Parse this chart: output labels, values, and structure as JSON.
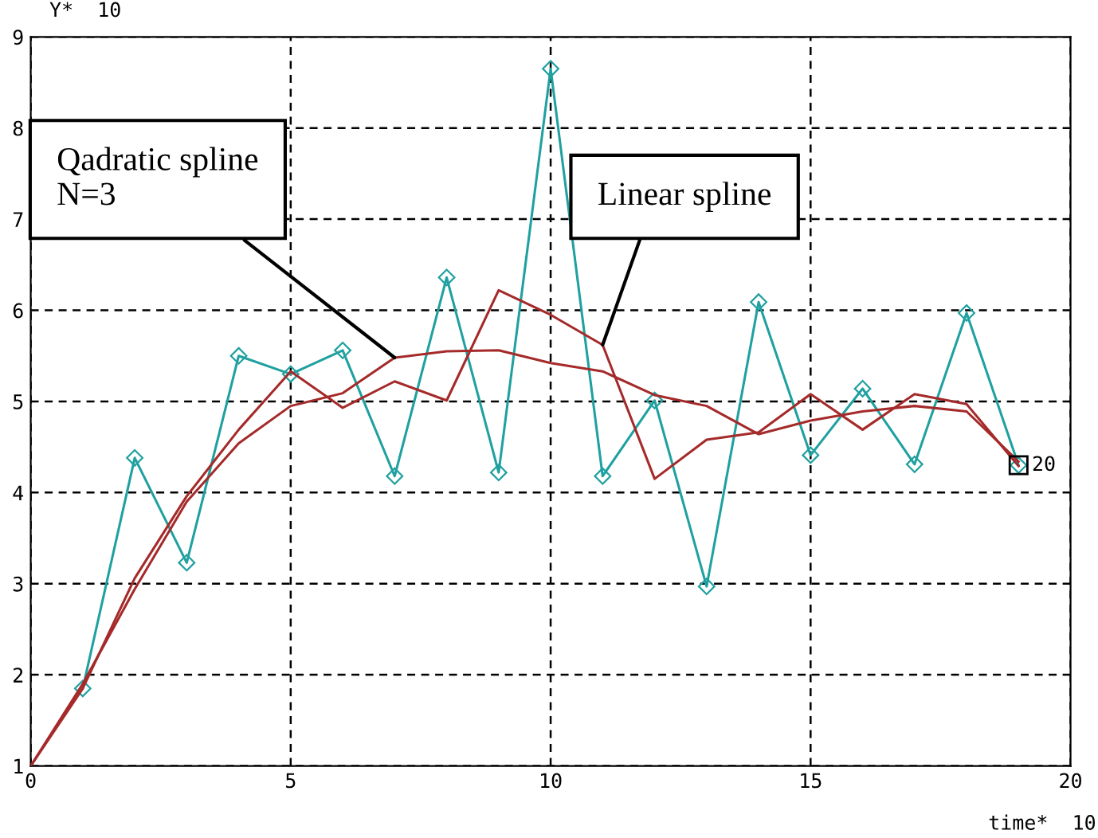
{
  "chart_data": {
    "type": "line",
    "xlabel": "time*  10",
    "ylabel": "Y*  10",
    "xlim": [
      0,
      20
    ],
    "ylim": [
      1,
      9
    ],
    "xticks": [
      0,
      5,
      10,
      15,
      20
    ],
    "yticks": [
      1,
      2,
      3,
      4,
      5,
      6,
      7,
      8,
      9
    ],
    "grid": true,
    "legend": false,
    "series": [
      {
        "color": "#20a0a0",
        "marker": "diamond",
        "x": [
          1,
          2,
          3,
          4,
          5,
          6,
          7,
          8,
          9,
          10,
          11,
          12,
          13,
          14,
          15,
          16,
          17,
          18,
          19
        ],
        "values": [
          1.85,
          4.38,
          3.23,
          5.5,
          5.3,
          5.56,
          4.18,
          6.36,
          4.22,
          8.65,
          4.18,
          5.01,
          2.97,
          6.09,
          4.41,
          5.14,
          4.31,
          5.97,
          4.3
        ]
      },
      {
        "color": "#a52a2a",
        "marker": "none",
        "x": [
          0,
          1,
          2,
          3,
          4,
          5,
          6,
          7,
          8,
          9,
          10,
          11,
          12,
          13,
          14,
          15,
          16,
          17,
          18,
          19
        ],
        "values": [
          1,
          1.85,
          3.06,
          3.96,
          4.69,
          5.33,
          4.93,
          5.22,
          5.01,
          6.22,
          5.95,
          5.62,
          4.15,
          4.58,
          4.66,
          5.08,
          4.69,
          5.08,
          4.97,
          4.29
        ]
      },
      {
        "color": "#a52a2a",
        "marker": "none",
        "x": [
          0,
          1,
          2,
          3,
          4,
          5,
          6,
          7,
          8,
          9,
          10,
          11,
          12,
          13,
          14,
          15,
          16,
          17,
          18,
          19
        ],
        "values": [
          1,
          1.9,
          2.94,
          3.9,
          4.54,
          4.95,
          5.09,
          5.48,
          5.55,
          5.56,
          5.42,
          5.33,
          5.07,
          4.95,
          4.64,
          4.79,
          4.89,
          4.95,
          4.89,
          4.34
        ]
      }
    ],
    "annotations": [
      {
        "text": "Qadratic spline\nN=3",
        "x": 7,
        "y": 5.48
      },
      {
        "text": "Linear spline",
        "x": 11,
        "y": 5.62
      },
      {
        "text": "20",
        "x": 19,
        "y": 4.3
      }
    ]
  }
}
